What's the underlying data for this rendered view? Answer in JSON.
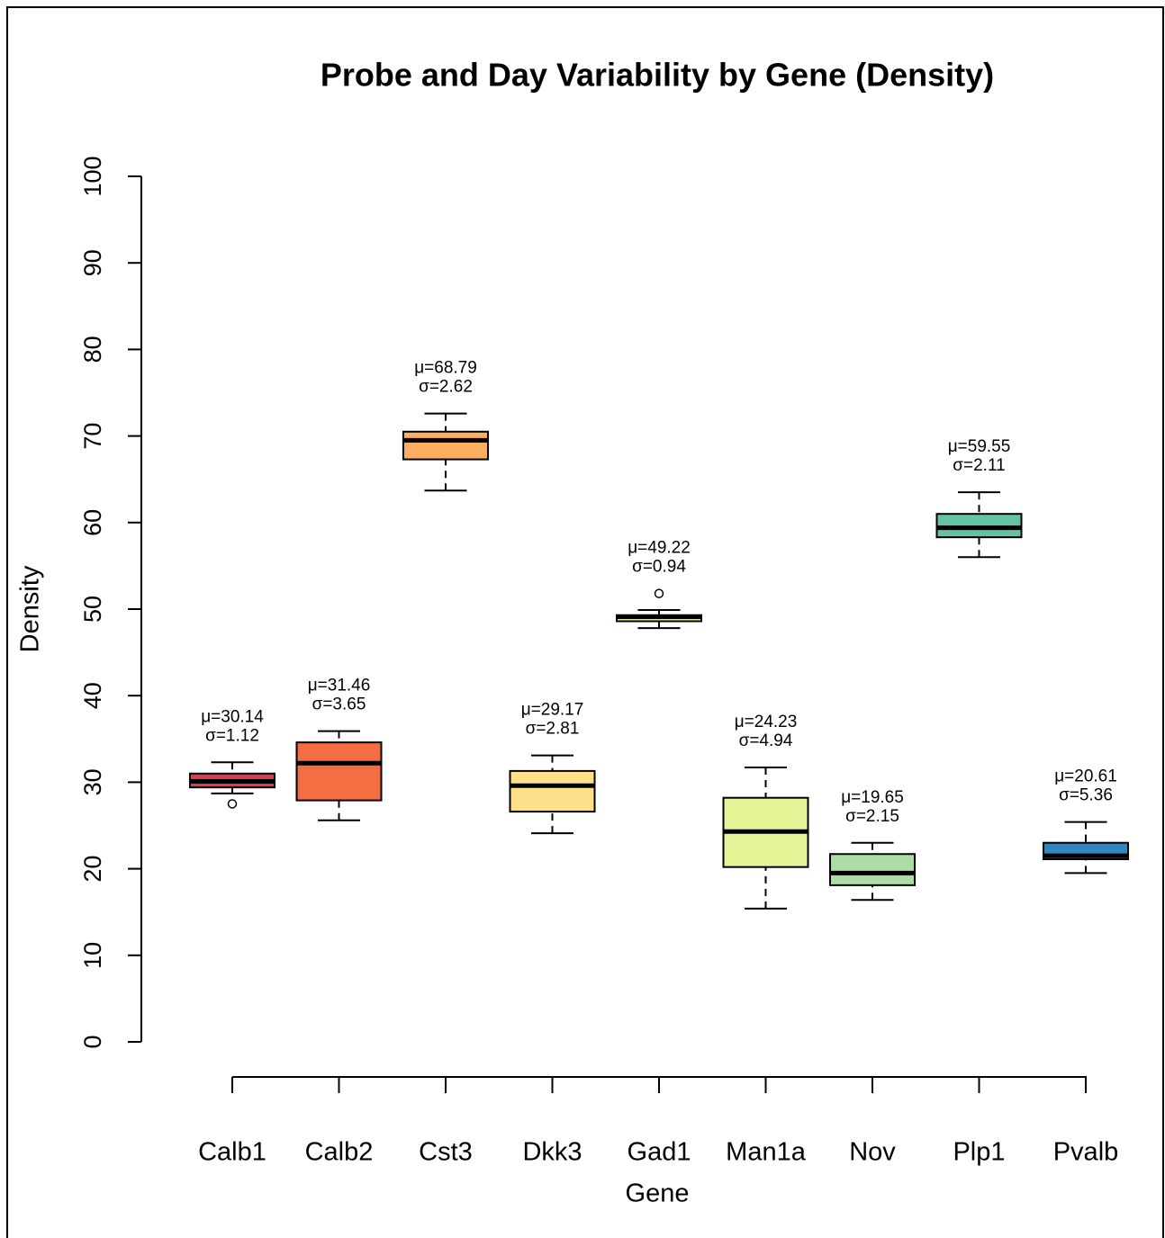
{
  "chart_data": {
    "type": "box",
    "title": "Probe and Day Variability by Gene (Density)",
    "x_label": "Gene",
    "y_label": "Density",
    "categories": [
      "Calb1",
      "Calb2",
      "Cst3",
      "Dkk3",
      "Gad1",
      "Man1a",
      "Nov",
      "Plp1",
      "Pvalb"
    ],
    "colors": [
      "#d53e4f",
      "#f46d43",
      "#fdae61",
      "#fee08b",
      "#ffffbf",
      "#e6f598",
      "#abdda4",
      "#66c2a5",
      "#3288bd"
    ],
    "boxes": [
      {
        "low": 28.7,
        "q1": 29.4,
        "median": 30.1,
        "q3": 31.0,
        "high": 32.3,
        "outliers": [
          27.5
        ]
      },
      {
        "low": 25.6,
        "q1": 27.9,
        "median": 32.2,
        "q3": 34.6,
        "high": 35.9,
        "outliers": []
      },
      {
        "low": 63.7,
        "q1": 67.3,
        "median": 69.5,
        "q3": 70.5,
        "high": 72.6,
        "outliers": []
      },
      {
        "low": 24.1,
        "q1": 26.6,
        "median": 29.6,
        "q3": 31.3,
        "high": 33.1,
        "outliers": []
      },
      {
        "low": 47.8,
        "q1": 48.6,
        "median": 49.1,
        "q3": 49.3,
        "high": 49.9,
        "outliers": [
          51.8
        ]
      },
      {
        "low": 15.4,
        "q1": 20.2,
        "median": 24.3,
        "q3": 28.2,
        "high": 31.7,
        "outliers": []
      },
      {
        "low": 16.4,
        "q1": 18.1,
        "median": 19.5,
        "q3": 21.7,
        "high": 23.0,
        "outliers": []
      },
      {
        "low": 56.0,
        "q1": 58.3,
        "median": 59.4,
        "q3": 61.0,
        "high": 63.5,
        "outliers": []
      },
      {
        "low": 19.5,
        "q1": 21.1,
        "median": 21.5,
        "q3": 23.0,
        "high": 25.4,
        "outliers": []
      }
    ],
    "mean_labels": [
      "μ=30.14",
      "μ=31.46",
      "μ=68.79",
      "μ=29.17",
      "μ=49.22",
      "μ=24.23",
      "μ=19.65",
      "μ=59.55",
      "μ=20.61"
    ],
    "sd_labels": [
      "σ=1.12",
      "σ=3.65",
      "σ=2.62",
      "σ=2.81",
      "σ=0.94",
      "σ=4.94",
      "σ=2.15",
      "σ=2.11",
      "σ=5.36"
    ],
    "ylim": [
      0,
      100
    ],
    "yticks": [
      0,
      10,
      20,
      30,
      40,
      50,
      60,
      70,
      80,
      90,
      100
    ]
  }
}
